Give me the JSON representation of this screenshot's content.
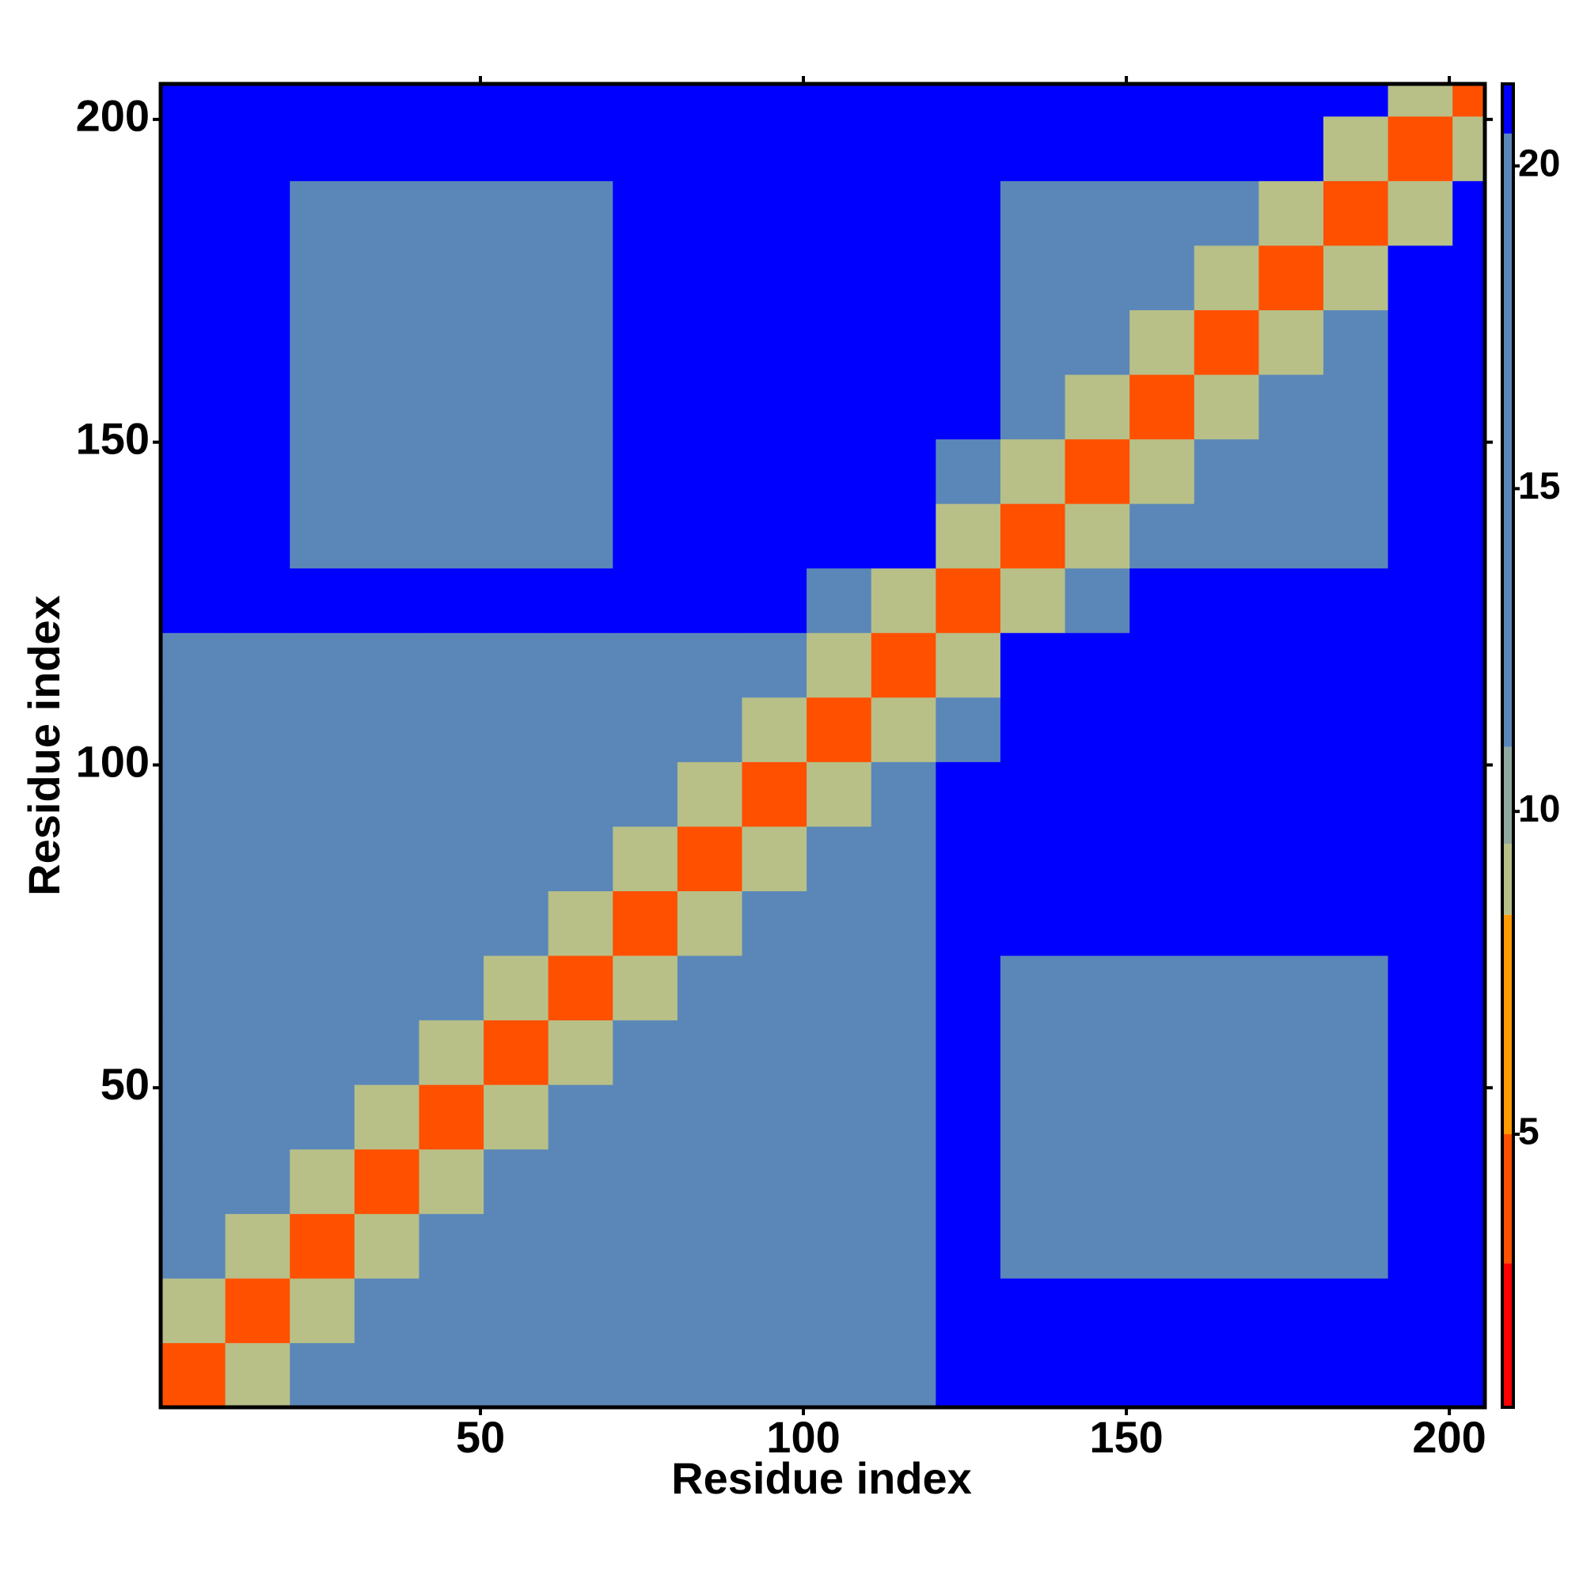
{
  "chart_data": {
    "type": "heatmap",
    "xlabel": "Residue index",
    "ylabel": "Residue index",
    "x_bins": [
      0.5,
      10.5,
      20.5,
      30.5,
      40.5,
      50.5,
      60.5,
      70.5,
      80.5,
      90.5,
      100.5,
      110.5,
      120.5,
      130.5,
      140.5,
      150.5,
      160.5,
      170.5,
      180.5,
      190.5,
      200.5,
      205.5
    ],
    "y_bins": [
      0.5,
      10.5,
      20.5,
      30.5,
      40.5,
      50.5,
      60.5,
      70.5,
      80.5,
      90.5,
      100.5,
      110.5,
      120.5,
      130.5,
      140.5,
      150.5,
      160.5,
      170.5,
      180.5,
      190.5,
      200.5,
      205.5
    ],
    "xlim": [
      0.5,
      205.5
    ],
    "ylim": [
      0.5,
      205.5
    ],
    "xticks": [
      50,
      100,
      150,
      200
    ],
    "yticks": [
      50,
      100,
      150,
      200
    ],
    "values": [
      [
        4,
        9,
        13,
        13,
        13,
        13,
        13,
        13,
        13,
        13,
        13,
        13,
        21,
        21,
        21,
        21,
        21,
        21,
        21,
        21,
        21
      ],
      [
        9,
        4,
        9,
        13,
        13,
        13,
        13,
        13,
        13,
        13,
        13,
        13,
        21,
        21,
        21,
        21,
        21,
        21,
        21,
        21,
        21
      ],
      [
        13,
        9,
        4,
        9,
        13,
        13,
        13,
        13,
        13,
        13,
        13,
        13,
        21,
        18,
        18,
        18,
        18,
        18,
        18,
        21,
        21
      ],
      [
        13,
        13,
        9,
        4,
        9,
        13,
        13,
        13,
        13,
        13,
        13,
        13,
        21,
        18,
        18,
        18,
        18,
        18,
        18,
        21,
        21
      ],
      [
        13,
        13,
        13,
        9,
        4,
        9,
        13,
        13,
        13,
        13,
        13,
        13,
        21,
        18,
        18,
        18,
        18,
        18,
        18,
        21,
        21
      ],
      [
        13,
        13,
        13,
        13,
        9,
        4,
        9,
        13,
        13,
        13,
        13,
        13,
        21,
        18,
        18,
        18,
        18,
        18,
        18,
        21,
        21
      ],
      [
        13,
        13,
        13,
        13,
        13,
        9,
        4,
        9,
        13,
        13,
        13,
        13,
        21,
        18,
        18,
        18,
        18,
        18,
        18,
        21,
        21
      ],
      [
        13,
        13,
        13,
        13,
        13,
        13,
        9,
        4,
        9,
        13,
        13,
        13,
        21,
        21,
        21,
        21,
        21,
        21,
        21,
        21,
        21
      ],
      [
        13,
        13,
        13,
        13,
        13,
        13,
        13,
        9,
        4,
        9,
        13,
        13,
        21,
        21,
        21,
        21,
        21,
        21,
        21,
        21,
        21
      ],
      [
        13,
        13,
        13,
        13,
        13,
        13,
        13,
        13,
        9,
        4,
        9,
        13,
        21,
        21,
        21,
        21,
        21,
        21,
        21,
        21,
        21
      ],
      [
        13,
        13,
        13,
        13,
        13,
        13,
        13,
        13,
        13,
        9,
        4,
        9,
        13,
        21,
        21,
        21,
        21,
        21,
        21,
        21,
        21
      ],
      [
        13,
        13,
        13,
        13,
        13,
        13,
        13,
        13,
        13,
        13,
        9,
        4,
        9,
        21,
        21,
        21,
        21,
        21,
        21,
        21,
        21
      ],
      [
        21,
        21,
        21,
        21,
        21,
        21,
        21,
        21,
        21,
        21,
        13,
        9,
        4,
        9,
        13,
        21,
        21,
        21,
        21,
        21,
        21
      ],
      [
        21,
        21,
        18,
        18,
        18,
        18,
        18,
        21,
        21,
        21,
        21,
        21,
        9,
        4,
        9,
        13,
        13,
        13,
        13,
        21,
        21
      ],
      [
        21,
        21,
        18,
        18,
        18,
        18,
        18,
        21,
        21,
        21,
        21,
        21,
        13,
        9,
        4,
        9,
        13,
        13,
        13,
        21,
        21
      ],
      [
        21,
        21,
        18,
        18,
        18,
        18,
        18,
        21,
        21,
        21,
        21,
        21,
        21,
        13,
        9,
        4,
        9,
        13,
        13,
        21,
        21
      ],
      [
        21,
        21,
        18,
        18,
        18,
        18,
        18,
        21,
        21,
        21,
        21,
        21,
        21,
        13,
        13,
        9,
        4,
        9,
        13,
        21,
        21
      ],
      [
        21,
        21,
        18,
        18,
        18,
        18,
        18,
        21,
        21,
        21,
        21,
        21,
        21,
        13,
        13,
        13,
        9,
        4,
        9,
        21,
        21
      ],
      [
        21,
        21,
        18,
        18,
        18,
        18,
        18,
        21,
        21,
        21,
        21,
        21,
        21,
        13,
        13,
        13,
        13,
        9,
        4,
        9,
        21
      ],
      [
        21,
        21,
        21,
        21,
        21,
        21,
        21,
        21,
        21,
        21,
        21,
        21,
        21,
        21,
        21,
        21,
        21,
        21,
        9,
        4,
        9
      ],
      [
        21,
        21,
        21,
        21,
        21,
        21,
        21,
        21,
        21,
        21,
        21,
        21,
        21,
        21,
        21,
        21,
        21,
        21,
        21,
        9,
        4
      ]
    ],
    "colorbar": {
      "lim": [
        0.77,
        21.27
      ],
      "ticks": [
        5,
        10,
        15,
        20
      ],
      "levels": [
        {
          "from": 0.77,
          "to": 3,
          "color": "#ff0000"
        },
        {
          "from": 3,
          "to": 5,
          "color": "#ff5000"
        },
        {
          "from": 5,
          "to": 8.4,
          "color": "#ff9a00"
        },
        {
          "from": 8.4,
          "to": 9.5,
          "color": "#b8c088"
        },
        {
          "from": 9.5,
          "to": 11,
          "color": "#8fa8a0"
        },
        {
          "from": 11,
          "to": 20.5,
          "color": "#5b87b8"
        },
        {
          "from": 20.5,
          "to": 21.27,
          "color": "#0000ff"
        }
      ]
    }
  }
}
